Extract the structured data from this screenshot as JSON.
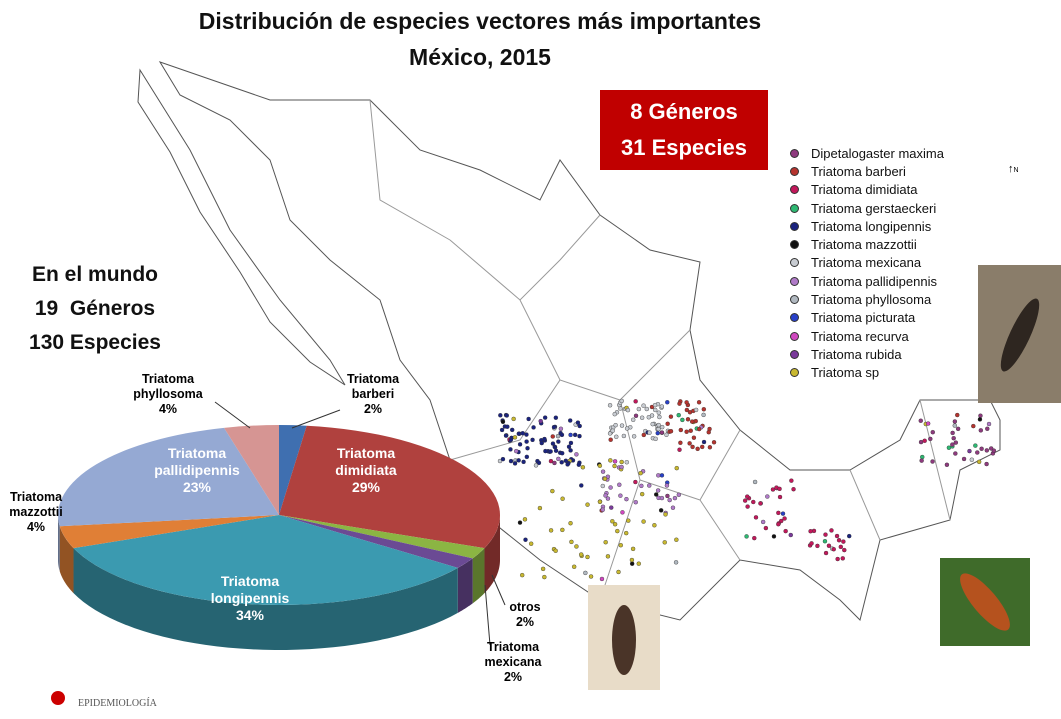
{
  "title": [
    "Distribución de especies vectores más importantes",
    "México, 2015"
  ],
  "mexico_box": [
    "8 Géneros",
    "31 Especies"
  ],
  "world_box": [
    "En el mundo",
    "19  Géneros",
    "130 Especies"
  ],
  "north": "N",
  "logo": "EPIDEMIOLOGÍA",
  "legend": [
    {
      "name": "Dipetalogaster maxima",
      "color": "#8e3a7e"
    },
    {
      "name": "Triatoma barberi",
      "color": "#b5332e"
    },
    {
      "name": "Triatoma dimidiata",
      "color": "#c2185b"
    },
    {
      "name": "Triatoma gerstaeckeri",
      "color": "#2eb872"
    },
    {
      "name": "Triatoma longipennis",
      "color": "#1a237e"
    },
    {
      "name": "Triatoma mazzottii",
      "color": "#111111"
    },
    {
      "name": "Triatoma mexicana",
      "color": "#c8ccd2"
    },
    {
      "name": "Triatoma pallidipennis",
      "color": "#b07ac8"
    },
    {
      "name": "Triatoma phyllosoma",
      "color": "#b0b8c0"
    },
    {
      "name": "Triatoma picturata",
      "color": "#2840c8"
    },
    {
      "name": "Triatoma recurva",
      "color": "#d048c0"
    },
    {
      "name": "Triatoma rubida",
      "color": "#7a3a9a"
    },
    {
      "name": "Triatoma sp",
      "color": "#c8b830"
    }
  ],
  "chart_data": {
    "type": "pie",
    "categories": [
      "Triatoma barberi",
      "Triatoma dimidiata",
      "otros",
      "Triatoma mexicana",
      "Triatoma longipennis",
      "Triatoma mazzottii",
      "Triatoma pallidipennis",
      "Triatoma phyllosoma"
    ],
    "values": [
      2,
      29,
      2,
      2,
      34,
      4,
      23,
      4
    ],
    "value_labels": [
      "2%",
      "29%",
      "2%",
      "2%",
      "34%",
      "4%",
      "23%",
      "4%"
    ],
    "colors": [
      "#3f6fb0",
      "#b0413e",
      "#8bb543",
      "#6b4a94",
      "#3b9ab0",
      "#e07f36",
      "#95a9d3",
      "#d69593"
    ]
  }
}
